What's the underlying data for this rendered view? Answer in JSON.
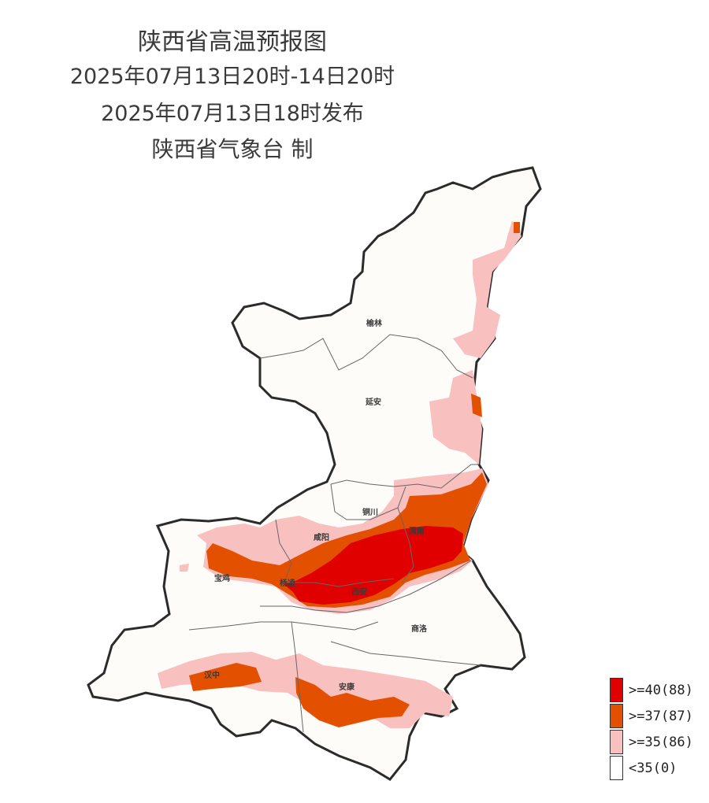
{
  "title": {
    "line1": "陕西省高温预报图",
    "line2": "2025年07月13日20时-14日20时",
    "line3": "2025年07月13日18时发布",
    "line4": "陕西省气象台 制"
  },
  "cities": [
    {
      "name": "榆林"
    },
    {
      "name": "延安"
    },
    {
      "name": "铜川"
    },
    {
      "name": "渭南"
    },
    {
      "name": "咸阳"
    },
    {
      "name": "宝鸡"
    },
    {
      "name": "杨凌"
    },
    {
      "name": "西安"
    },
    {
      "name": "商洛"
    },
    {
      "name": "汉中"
    },
    {
      "name": "安康"
    }
  ],
  "legend": [
    {
      "label": ">=40(88)",
      "color": "#e00000"
    },
    {
      "label": ">=37(87)",
      "color": "#e35100"
    },
    {
      "label": ">=35(86)",
      "color": "#f9c0c0"
    },
    {
      "label": "<35(0)",
      "color": "#ffffff"
    }
  ],
  "colors": {
    "background_land": "#fdfcf9",
    "border": "#2b2b2b",
    "city_border": "#666666"
  }
}
